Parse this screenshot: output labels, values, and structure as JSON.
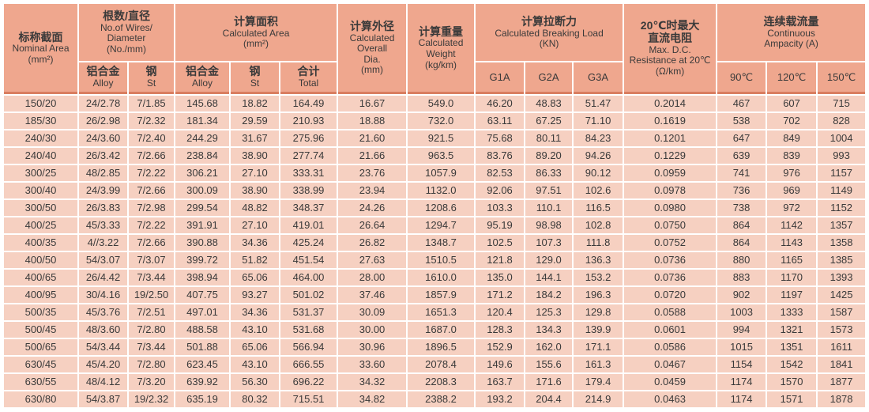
{
  "colors": {
    "header_bg": "#efa78e",
    "row_bg": "#f6d0c1",
    "header_edge": "#d97e60",
    "text": "#3a3a3a",
    "page_bg": "#ffffff"
  },
  "header": {
    "nominal": {
      "zh": "标称截面",
      "en": "Nominal Area",
      "unit": "(mm²)"
    },
    "wires": {
      "zh": "根数/直径",
      "en1": "No.of Wires/",
      "en2": "Diameter",
      "en3": "(No./mm)"
    },
    "area": {
      "zh": "计算面积",
      "en": "Calculated Area",
      "unit": "(mm²)"
    },
    "dia": {
      "zh": "计算外径",
      "en1": "Calculated",
      "en2": "Overall",
      "en3": "Dia.",
      "unit": "(mm)"
    },
    "weight": {
      "zh": "计算重量",
      "en1": "Calculated",
      "en2": "Weight",
      "unit": "(kg/km)"
    },
    "breaking": {
      "zh": "计算拉断力",
      "en": "Calculated  Breaking Load",
      "unit": "(KN)",
      "g1": "G1A",
      "g2": "G2A",
      "g3": "G3A"
    },
    "resistance": {
      "zh1": "20℃时最大",
      "zh2": "直流电阻",
      "en1": "Max. D.C.",
      "en2": "Resistance at 20℃",
      "unit": "(Ω/km)"
    },
    "ampacity": {
      "zh": "连续载流量",
      "en1": "Continuous",
      "en2": "Ampacity (A)",
      "t90": "90℃",
      "t120": "120℃",
      "t150": "150℃"
    },
    "sub": {
      "alloy_zh": "铝合金",
      "alloy_en": "Alloy",
      "st_zh": "钢",
      "st_en": "St",
      "total_zh": "合计",
      "total_en": "Total"
    }
  },
  "table": {
    "column_ids": [
      "nominal-area",
      "wires-alloy",
      "wires-steel",
      "area-alloy",
      "area-steel",
      "area-total",
      "overall-dia",
      "weight",
      "g1a",
      "g2a",
      "g3a",
      "resistance",
      "amp-90c",
      "amp-120c",
      "amp-150c"
    ],
    "rows": [
      [
        "150/20",
        "24/2.78",
        "7/1.85",
        "145.68",
        "18.82",
        "164.49",
        "16.67",
        "549.0",
        "46.20",
        "48.83",
        "51.47",
        "0.2014",
        "467",
        "607",
        "715"
      ],
      [
        "185/30",
        "26/2.98",
        "7/2.32",
        "181.34",
        "29.59",
        "210.93",
        "18.88",
        "732.0",
        "63.11",
        "67.25",
        "71.10",
        "0.1619",
        "538",
        "702",
        "828"
      ],
      [
        "240/30",
        "24/3.60",
        "7/2.40",
        "244.29",
        "31.67",
        "275.96",
        "21.60",
        "921.5",
        "75.68",
        "80.11",
        "84.23",
        "0.1201",
        "647",
        "849",
        "1004"
      ],
      [
        "240/40",
        "26/3.42",
        "7/2.66",
        "238.84",
        "38.90",
        "277.74",
        "21.66",
        "963.5",
        "83.76",
        "89.20",
        "94.26",
        "0.1229",
        "639",
        "839",
        "993"
      ],
      [
        "300/25",
        "48/2.85",
        "7/2.22",
        "306.21",
        "27.10",
        "333.31",
        "23.76",
        "1057.9",
        "82.53",
        "86.33",
        "90.12",
        "0.0959",
        "741",
        "976",
        "1157"
      ],
      [
        "300/40",
        "24/3.99",
        "7/2.66",
        "300.09",
        "38.90",
        "338.99",
        "23.94",
        "1132.0",
        "92.06",
        "97.51",
        "102.6",
        "0.0978",
        "736",
        "969",
        "1149"
      ],
      [
        "300/50",
        "26/3.83",
        "7/2.98",
        "299.54",
        "48.82",
        "348.37",
        "24.26",
        "1208.6",
        "103.3",
        "110.1",
        "116.5",
        "0.0980",
        "738",
        "972",
        "1152"
      ],
      [
        "400/25",
        "45/3.33",
        "7/2.22",
        "391.91",
        "27.10",
        "419.01",
        "26.64",
        "1294.7",
        "95.19",
        "98.98",
        "102.8",
        "0.0750",
        "864",
        "1142",
        "1357"
      ],
      [
        "400/35",
        "4//3.22",
        "7/2.66",
        "390.88",
        "34.36",
        "425.24",
        "26.82",
        "1348.7",
        "102.5",
        "107.3",
        "111.8",
        "0.0752",
        "864",
        "1143",
        "1358"
      ],
      [
        "400/50",
        "54/3.07",
        "7/3.07",
        "399.72",
        "51.82",
        "451.54",
        "27.63",
        "1510.5",
        "121.8",
        "129.0",
        "136.3",
        "0.0736",
        "880",
        "1165",
        "1385"
      ],
      [
        "400/65",
        "26/4.42",
        "7/3.44",
        "398.94",
        "65.06",
        "464.00",
        "28.00",
        "1610.0",
        "135.0",
        "144.1",
        "153.2",
        "0.0736",
        "883",
        "1170",
        "1393"
      ],
      [
        "400/95",
        "30/4.16",
        "19/2.50",
        "407.75",
        "93.27",
        "501.02",
        "37.46",
        "1857.9",
        "171.2",
        "184.2",
        "196.3",
        "0.0720",
        "902",
        "1197",
        "1425"
      ],
      [
        "500/35",
        "45/3.76",
        "7/2.51",
        "497.01",
        "34.36",
        "531.37",
        "30.09",
        "1651.3",
        "120.4",
        "125.3",
        "129.8",
        "0.0588",
        "1003",
        "1333",
        "1587"
      ],
      [
        "500/45",
        "48/3.60",
        "7/2.80",
        "488.58",
        "43.10",
        "531.68",
        "30.00",
        "1687.0",
        "128.3",
        "134.3",
        "139.9",
        "0.0601",
        "994",
        "1321",
        "1573"
      ],
      [
        "500/65",
        "54/3.44",
        "7/3.44",
        "501.88",
        "65.06",
        "566.94",
        "30.96",
        "1896.5",
        "152.9",
        "162.0",
        "171.1",
        "0.0586",
        "1015",
        "1351",
        "1611"
      ],
      [
        "630/45",
        "45/4.20",
        "7/2.80",
        "623.45",
        "43.10",
        "666.55",
        "33.60",
        "2078.4",
        "149.6",
        "155.6",
        "161.3",
        "0.0467",
        "1154",
        "1542",
        "1841"
      ],
      [
        "630/55",
        "48/4.12",
        "7/3.20",
        "639.92",
        "56.30",
        "696.22",
        "34.32",
        "2208.3",
        "163.7",
        "171.6",
        "179.4",
        "0.0459",
        "1174",
        "1570",
        "1877"
      ],
      [
        "630/80",
        "54/3.87",
        "19/2.32",
        "635.19",
        "80.32",
        "715.51",
        "34.82",
        "2388.2",
        "193.2",
        "204.4",
        "214.9",
        "0.0463",
        "1174",
        "1571",
        "1878"
      ]
    ]
  }
}
